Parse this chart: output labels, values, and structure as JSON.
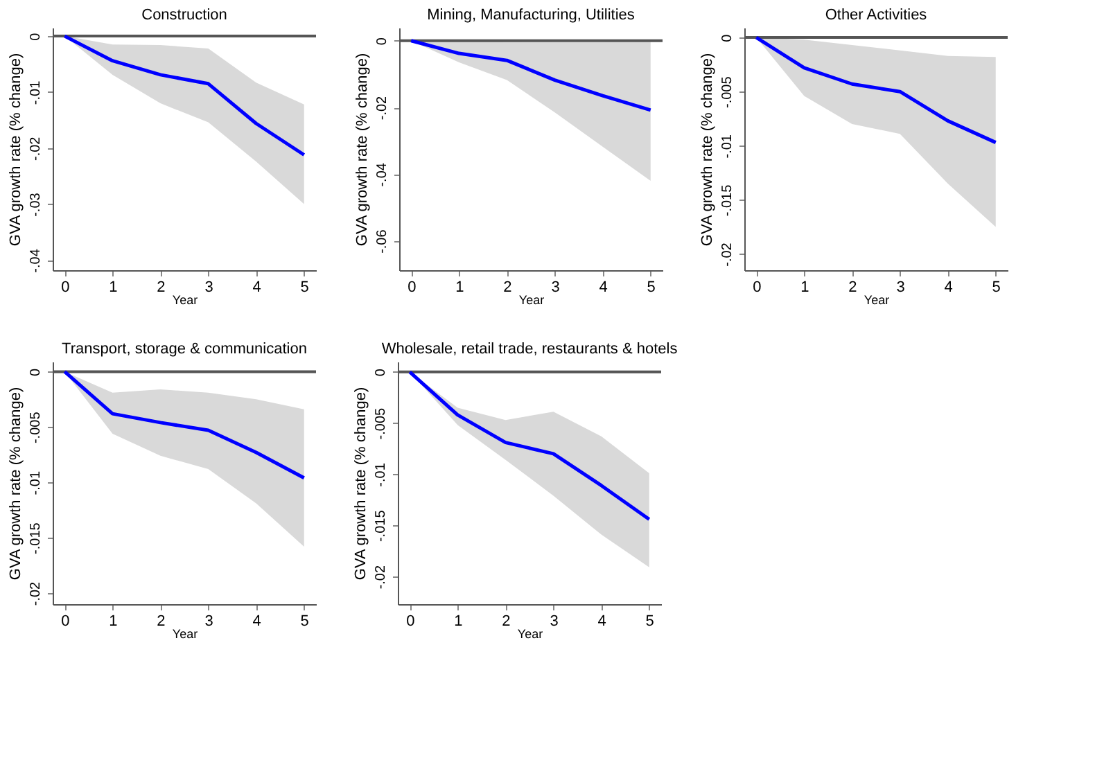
{
  "chart_data": [
    {
      "type": "line",
      "title": "Construction",
      "xlabel": "Year",
      "ylabel": "GVA growth rate (% change)",
      "x": [
        0,
        1,
        2,
        3,
        4,
        5
      ],
      "xlim": [
        -0.25,
        5.25
      ],
      "xticks": [
        0,
        1,
        2,
        3,
        4,
        5
      ],
      "ylim": [
        -0.0418,
        0.0015
      ],
      "yticks": [
        {
          "value": 0,
          "label": "0"
        },
        {
          "value": -0.01,
          "label": "-.01"
        },
        {
          "value": -0.02,
          "label": "-.02"
        },
        {
          "value": -0.03,
          "label": "-.03"
        },
        {
          "value": -0.04,
          "label": "-.04"
        }
      ],
      "grid": false,
      "series": [
        {
          "color": "#0000ff",
          "values": [
            0,
            -0.0044,
            -0.0069,
            -0.0085,
            -0.0156,
            -0.0212
          ],
          "lower": [
            0,
            -0.0069,
            -0.012,
            -0.0154,
            -0.0224,
            -0.03
          ],
          "upper": [
            0,
            -0.0015,
            -0.0016,
            -0.0022,
            -0.0083,
            -0.0122
          ]
        }
      ],
      "ref_lines": [
        {
          "axis": "y",
          "value": 0,
          "color": "#555555"
        }
      ]
    },
    {
      "type": "line",
      "title": "Mining, Manufacturing, Utilities",
      "xlabel": "Year",
      "ylabel": "GVA growth rate (% change)",
      "x": [
        0,
        1,
        2,
        3,
        4,
        5
      ],
      "xlim": [
        -0.25,
        5.25
      ],
      "xticks": [
        0,
        1,
        2,
        3,
        4,
        5
      ],
      "ylim": [
        -0.0688,
        0.0039
      ],
      "yticks": [
        {
          "value": 0,
          "label": "0"
        },
        {
          "value": -0.02,
          "label": "-.02"
        },
        {
          "value": -0.04,
          "label": "-.04"
        },
        {
          "value": -0.06,
          "label": "-.06"
        }
      ],
      "grid": false,
      "series": [
        {
          "color": "#0000ff",
          "values": [
            0,
            -0.0038,
            -0.0059,
            -0.0118,
            -0.0165,
            -0.0208
          ],
          "lower": [
            0,
            -0.0065,
            -0.0118,
            -0.0215,
            -0.0318,
            -0.042
          ],
          "upper": [
            0,
            -0.0002,
            -0.0003,
            -0.0004,
            -0.0004,
            -0.0003
          ]
        }
      ],
      "ref_lines": [
        {
          "axis": "y",
          "value": 0,
          "color": "#555555"
        }
      ]
    },
    {
      "type": "line",
      "title": "Other Activities",
      "xlabel": "Year",
      "ylabel": "GVA growth rate (% change)",
      "x": [
        0,
        1,
        2,
        3,
        4,
        5
      ],
      "xlim": [
        -0.25,
        5.25
      ],
      "xticks": [
        0,
        1,
        2,
        3,
        4,
        5
      ],
      "ylim": [
        -0.0215,
        0.0009
      ],
      "yticks": [
        {
          "value": 0,
          "label": "0"
        },
        {
          "value": -0.005,
          "label": "-.005"
        },
        {
          "value": -0.01,
          "label": "-.01"
        },
        {
          "value": -0.015,
          "label": "-.015"
        },
        {
          "value": -0.02,
          "label": "-.02"
        }
      ],
      "grid": false,
      "series": [
        {
          "color": "#0000ff",
          "values": [
            0,
            -0.0028,
            -0.0043,
            -0.005,
            -0.0077,
            -0.0097
          ],
          "lower": [
            0,
            -0.0054,
            -0.008,
            -0.0089,
            -0.0135,
            -0.0175
          ],
          "upper": [
            0,
            -0.0002,
            -0.0007,
            -0.0012,
            -0.0017,
            -0.0018
          ]
        }
      ],
      "ref_lines": [
        {
          "axis": "y",
          "value": 0,
          "color": "#555555"
        }
      ]
    },
    {
      "type": "line",
      "title": "Transport, storage & communication",
      "xlabel": "Year",
      "ylabel": "GVA growth rate (% change)",
      "x": [
        0,
        1,
        2,
        3,
        4,
        5
      ],
      "xlim": [
        -0.25,
        5.25
      ],
      "xticks": [
        0,
        1,
        2,
        3,
        4,
        5
      ],
      "ylim": [
        -0.021,
        0.0009
      ],
      "yticks": [
        {
          "value": 0,
          "label": "0"
        },
        {
          "value": -0.005,
          "label": "-.005"
        },
        {
          "value": -0.01,
          "label": "-.01"
        },
        {
          "value": -0.015,
          "label": "-.015"
        },
        {
          "value": -0.02,
          "label": "-.02"
        }
      ],
      "grid": false,
      "series": [
        {
          "color": "#0000ff",
          "values": [
            0,
            -0.0038,
            -0.0046,
            -0.0053,
            -0.0073,
            -0.0096
          ],
          "lower": [
            0,
            -0.0056,
            -0.0076,
            -0.0088,
            -0.0119,
            -0.0158
          ],
          "upper": [
            0,
            -0.0019,
            -0.0016,
            -0.0019,
            -0.0025,
            -0.0034
          ]
        }
      ],
      "ref_lines": [
        {
          "axis": "y",
          "value": 0,
          "color": "#555555"
        }
      ]
    },
    {
      "type": "line",
      "title": "Wholesale, retail trade, restaurants & hotels",
      "xlabel": "Year",
      "ylabel": "GVA growth rate (% change)",
      "x": [
        0,
        1,
        2,
        3,
        4,
        5
      ],
      "xlim": [
        -0.25,
        5.25
      ],
      "xticks": [
        0,
        1,
        2,
        3,
        4,
        5
      ],
      "ylim": [
        -0.0227,
        0.001
      ],
      "yticks": [
        {
          "value": 0,
          "label": "0"
        },
        {
          "value": -0.005,
          "label": "-.005"
        },
        {
          "value": -0.01,
          "label": "-.01"
        },
        {
          "value": -0.015,
          "label": "-.015"
        },
        {
          "value": -0.02,
          "label": "-.02"
        }
      ],
      "grid": false,
      "series": [
        {
          "color": "#0000ff",
          "values": [
            0,
            -0.0042,
            -0.0069,
            -0.008,
            -0.0111,
            -0.0144
          ],
          "lower": [
            0,
            -0.0052,
            -0.0086,
            -0.0121,
            -0.0159,
            -0.0191
          ],
          "upper": [
            0,
            -0.0035,
            -0.0047,
            -0.0039,
            -0.0063,
            -0.0099
          ]
        }
      ],
      "ref_lines": [
        {
          "axis": "y",
          "value": 0,
          "color": "#555555"
        }
      ]
    }
  ]
}
